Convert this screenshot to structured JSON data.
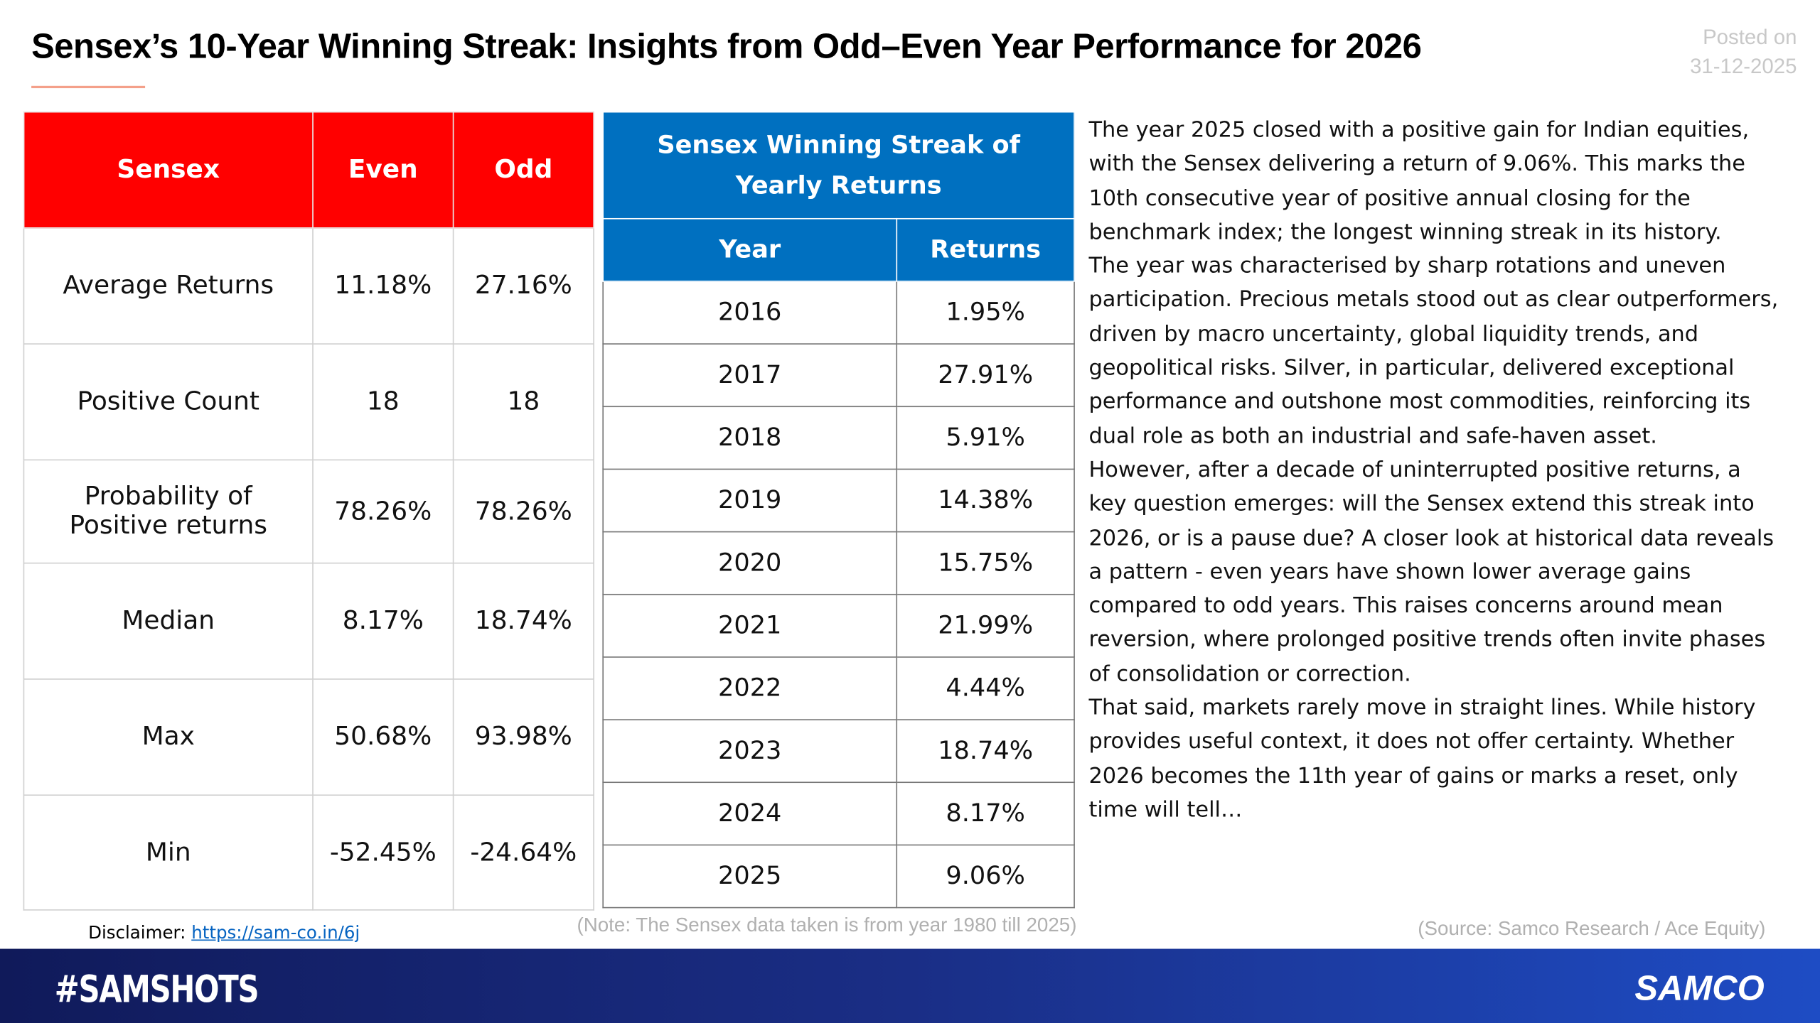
{
  "header": {
    "title": "Sensex’s 10-Year Winning Streak: Insights from Odd–Even Year Performance for 2026",
    "posted_label": "Posted on",
    "posted_date": "31-12-2025"
  },
  "stats_table": {
    "columns": [
      "Sensex",
      "Even",
      "Odd"
    ],
    "rows": [
      [
        "Average Returns",
        "11.18%",
        "27.16%"
      ],
      [
        "Positive Count",
        "18",
        "18"
      ],
      [
        "Probability of Positive returns",
        "78.26%",
        "78.26%"
      ],
      [
        "Median",
        "8.17%",
        "18.74%"
      ],
      [
        "Max",
        "50.68%",
        "93.98%"
      ],
      [
        "Min",
        "-52.45%",
        "-24.64%"
      ]
    ]
  },
  "streak_table": {
    "title": "Sensex Winning Streak of Yearly Returns",
    "columns": [
      "Year",
      "Returns"
    ],
    "rows": [
      [
        "2016",
        "1.95%"
      ],
      [
        "2017",
        "27.91%"
      ],
      [
        "2018",
        "5.91%"
      ],
      [
        "2019",
        "14.38%"
      ],
      [
        "2020",
        "15.75%"
      ],
      [
        "2021",
        "21.99%"
      ],
      [
        "2022",
        "4.44%"
      ],
      [
        "2023",
        "18.74%"
      ],
      [
        "2024",
        "8.17%"
      ],
      [
        "2025",
        "9.06%"
      ]
    ]
  },
  "commentary": {
    "paragraphs": [
      "The year 2025 closed with a positive gain for Indian equities, with the Sensex delivering a return of 9.06%. This marks the 10th consecutive year of positive annual closing for the benchmark index; the longest winning streak in its history.",
      "The year was characterised by sharp rotations and uneven participation. Precious metals stood out as clear outperformers, driven by macro uncertainty, global liquidity trends, and geopolitical risks. Silver, in particular, delivered exceptional performance and outshone most commodities, reinforcing its dual role as both an industrial and safe-haven asset.",
      "However, after a decade of uninterrupted positive returns, a key question emerges: will the Sensex extend this streak into 2026, or is a pause due? A closer look at historical data reveals a pattern - even years have shown lower average gains compared to odd years. This raises concerns around mean reversion, where prolonged positive trends often invite phases of consolidation or correction.",
      "That said, markets rarely move in straight lines. While history provides useful context, it does not offer certainty. Whether 2026 becomes the 11th year of gains or marks a reset, only time will tell…"
    ]
  },
  "footnotes": {
    "disclaimer_label": "Disclaimer:",
    "disclaimer_link": "https://sam-co.in/6j",
    "note": "(Note: The Sensex data taken is from year 1980 till 2025)",
    "source": "(Source: Samco Research / Ace Equity)"
  },
  "footer": {
    "hashtag": "#SAMSHOTS",
    "logo": "SAMCO"
  }
}
